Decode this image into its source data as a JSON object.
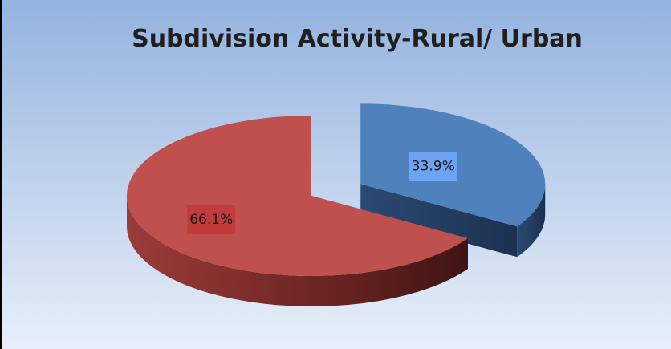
{
  "chart_data": {
    "type": "pie",
    "title": "Subdivision Activity-Rural/ Urban",
    "values": [
      33.9,
      66.1
    ],
    "value_labels": [
      "33.9%",
      "66.1%"
    ],
    "colors": [
      "#4f81bd",
      "#c0504d"
    ]
  }
}
